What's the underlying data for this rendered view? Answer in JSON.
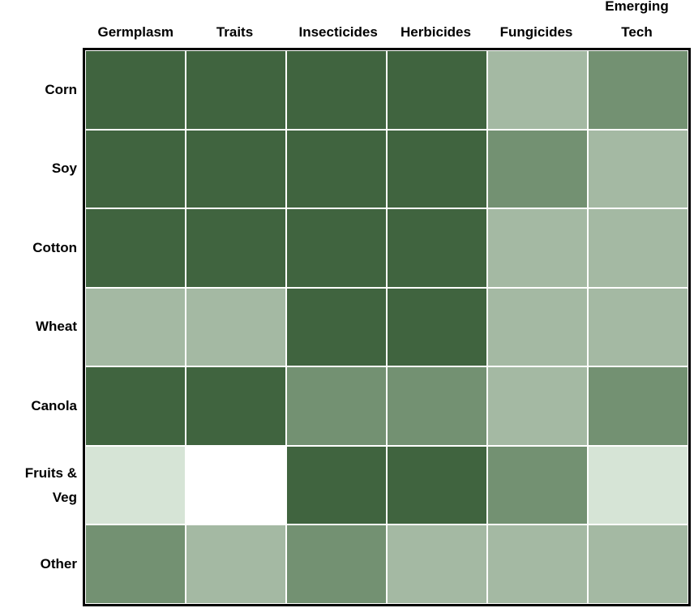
{
  "chart_data": {
    "type": "heatmap",
    "x": [
      "Germplasm",
      "Traits",
      "Insecticides",
      "Herbicides",
      "Fungicides",
      "Emerging Tech"
    ],
    "y": [
      "Corn",
      "Soy",
      "Cotton",
      "Wheat",
      "Canola",
      "Fruits & Veg",
      "Other"
    ],
    "colors": [
      [
        "#40643f",
        "#40643f",
        "#40643f",
        "#40643f",
        "#a4b9a3",
        "#739172"
      ],
      [
        "#40643f",
        "#40643f",
        "#40643f",
        "#40643f",
        "#739172",
        "#a4b9a3"
      ],
      [
        "#40643f",
        "#40643f",
        "#40643f",
        "#40643f",
        "#a4b9a3",
        "#a4b9a3"
      ],
      [
        "#a4b9a3",
        "#a4b9a3",
        "#40643f",
        "#40643f",
        "#a4b9a3",
        "#a4b9a3"
      ],
      [
        "#40643f",
        "#40643f",
        "#739172",
        "#739172",
        "#a4b9a3",
        "#739172"
      ],
      [
        "#d6e4d6",
        "#ffffff",
        "#40643f",
        "#40643f",
        "#739172",
        "#d6e4d6"
      ],
      [
        "#739172",
        "#a4b9a3",
        "#739172",
        "#a4b9a3",
        "#a4b9a3",
        "#a4b9a3"
      ]
    ]
  }
}
